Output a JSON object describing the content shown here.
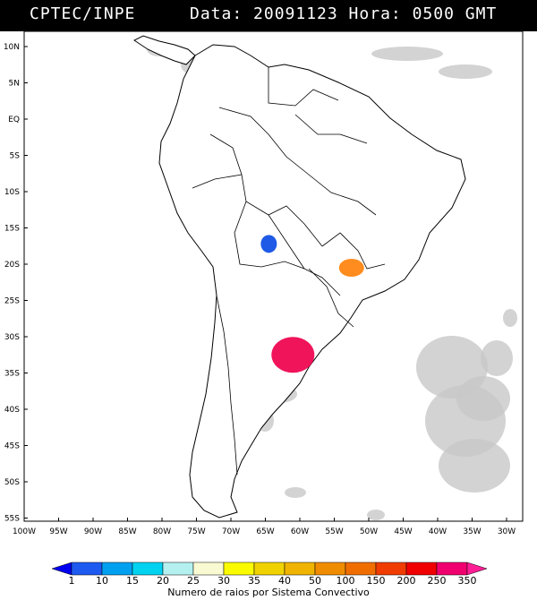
{
  "header": {
    "left": "CPTEC/INPE",
    "right": "Data: 20091123 Hora: 0500 GMT"
  },
  "map": {
    "lat_ticks": [
      "10N",
      "5N",
      "EQ",
      "5S",
      "10S",
      "15S",
      "20S",
      "25S",
      "30S",
      "35S",
      "40S",
      "45S",
      "50S",
      "55S"
    ],
    "lon_ticks": [
      "100W",
      "95W",
      "90W",
      "85W",
      "80W",
      "75W",
      "70W",
      "65W",
      "60W",
      "55W",
      "50W",
      "45W",
      "40W",
      "35W",
      "30W"
    ],
    "land_color": "#ffffff",
    "cloud_color": "#c8c8c8",
    "border_color": "#000000"
  },
  "systems": [
    {
      "lon": -64.5,
      "lat": -17.2,
      "color": "#1e5ae6"
    },
    {
      "lon": -52.5,
      "lat": -20.5,
      "color": "#ff8c1e"
    },
    {
      "lon": -61.0,
      "lat": -32.5,
      "color": "#f0145a"
    }
  ],
  "colorbar": {
    "labels": [
      "1",
      "10",
      "15",
      "20",
      "25",
      "30",
      "35",
      "40",
      "50",
      "100",
      "150",
      "200",
      "250",
      "350"
    ],
    "colors": [
      "#0000f0",
      "#1e5af0",
      "#00a0f0",
      "#00d2f0",
      "#b4f0f0",
      "#fafad2",
      "#fafa00",
      "#f0d200",
      "#f0b400",
      "#f08c00",
      "#f06e00",
      "#f03c00",
      "#f00000",
      "#f0006e",
      "#ff1e96"
    ],
    "title": "Numero de raios por Sistema Convectivo"
  }
}
